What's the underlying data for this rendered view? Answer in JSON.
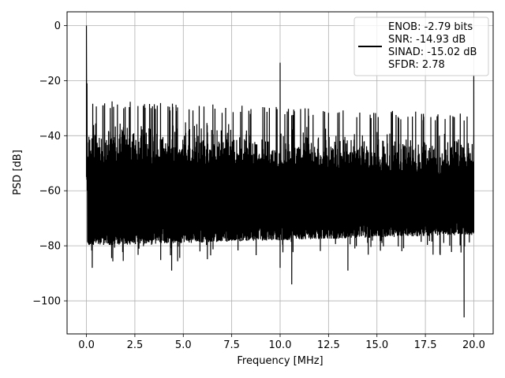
{
  "chart_data": {
    "type": "line",
    "title": "",
    "xlabel": "Frequency [MHz]",
    "ylabel": "PSD [dB]",
    "xlim": [
      -1.0,
      21.0
    ],
    "ylim": [
      -112,
      5
    ],
    "xticks": [
      "0.0",
      "2.5",
      "5.0",
      "7.5",
      "10.0",
      "12.5",
      "15.0",
      "17.5",
      "20.0"
    ],
    "xtick_values": [
      0,
      2.5,
      5,
      7.5,
      10,
      12.5,
      15,
      17.5,
      20
    ],
    "yticks": [
      "0",
      "−20",
      "−40",
      "−60",
      "−80",
      "−100"
    ],
    "ytick_values": [
      0,
      -20,
      -40,
      -60,
      -80,
      -100
    ],
    "grid": true,
    "legend_position": "top-right",
    "series": [
      {
        "line_color": "#000000",
        "description_points": {
          "x": [
            0.0,
            0.03,
            0.1,
            2.5,
            5.0,
            7.5,
            9.98,
            10.0,
            10.02,
            12.5,
            15.0,
            17.5,
            19.97,
            20.0
          ],
          "y_upper": [
            0.0,
            -21,
            -29,
            -31,
            -32,
            -33,
            -33,
            -13.5,
            -33,
            -34,
            -34,
            -35,
            -34,
            -18
          ]
        },
        "noise_floor_band": {
          "x_start": 0.05,
          "x_end": 20.0,
          "upper_db": [
            -30,
            -35
          ],
          "lower_db": [
            -80,
            -76
          ],
          "deep_nulls": [
            {
              "x": 0.3,
              "y": -88
            },
            {
              "x": 4.4,
              "y": -89
            },
            {
              "x": 10.0,
              "y": -88
            },
            {
              "x": 10.6,
              "y": -94
            },
            {
              "x": 13.5,
              "y": -89
            },
            {
              "x": 19.5,
              "y": -106
            }
          ]
        },
        "peaks": [
          {
            "x": 0.0,
            "y": 0.0
          },
          {
            "x": 10.0,
            "y": -13.5
          },
          {
            "x": 20.0,
            "y": -18
          }
        ]
      }
    ],
    "legend": {
      "lines": [
        "ENOB: -2.79 bits",
        "SNR: -14.93 dB",
        "SINAD: -15.02 dB",
        "SFDR: 2.78"
      ]
    }
  },
  "colors": {
    "line": "#000000",
    "grid": "#b0b0b0",
    "axes": "#000000",
    "legend_border": "#cccccc"
  }
}
